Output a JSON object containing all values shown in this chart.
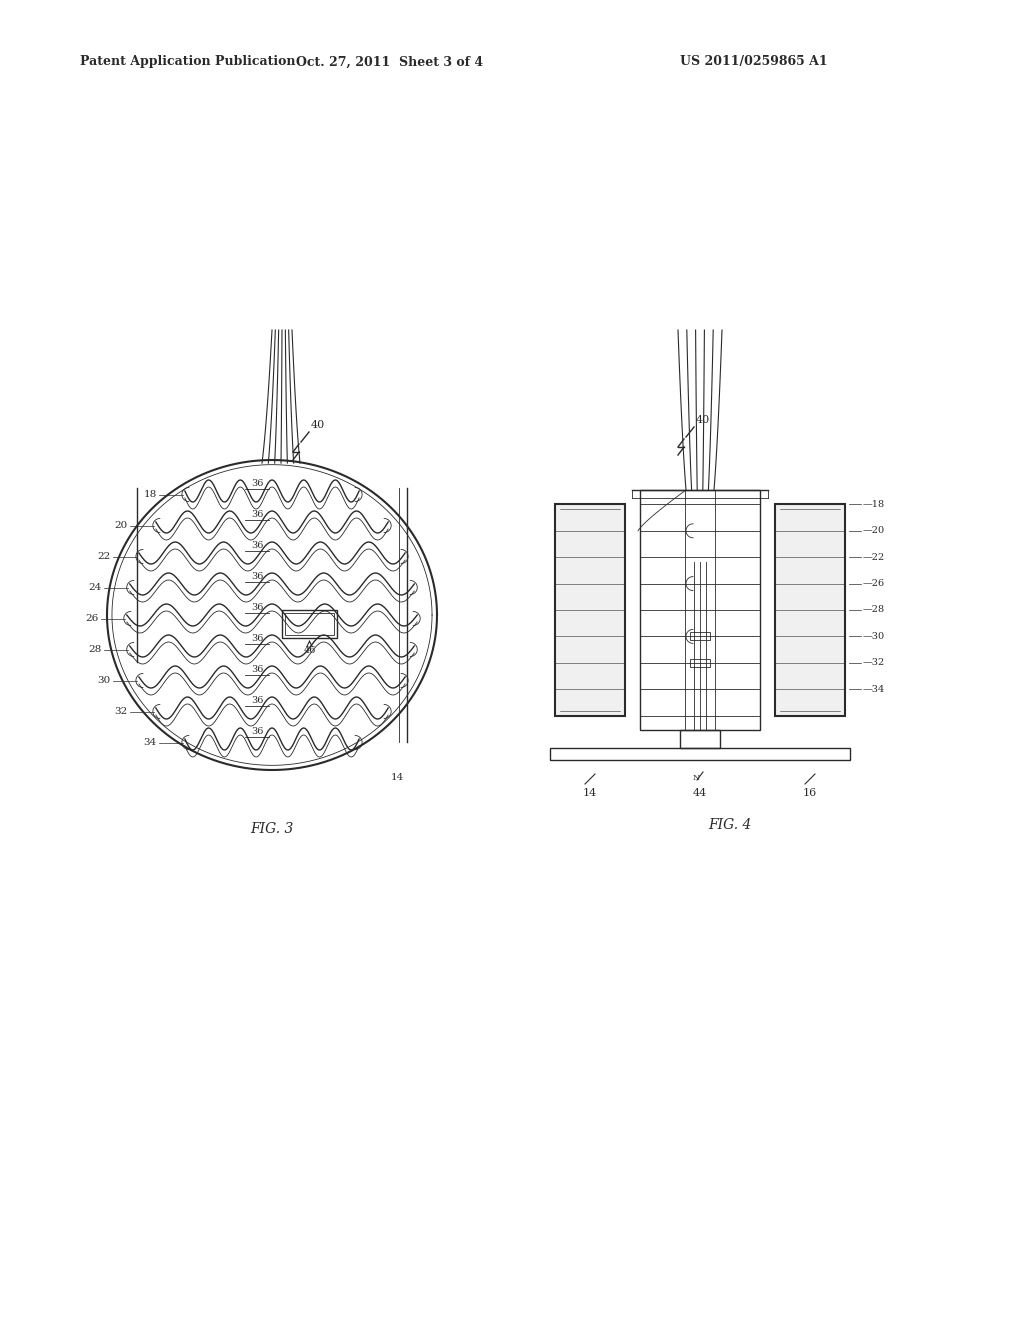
{
  "bg_color": "#ffffff",
  "line_color": "#2a2a2a",
  "header_text": "Patent Application Publication",
  "header_date": "Oct. 27, 2011  Sheet 3 of 4",
  "header_patent": "US 2011/0259865 A1",
  "fig3_label": "FIG. 3",
  "fig4_label": "FIG. 4",
  "label_40": "40",
  "label_46": "46",
  "label_14": "14",
  "label_44": "44",
  "label_16": "16",
  "labels_left": [
    "18",
    "20",
    "22",
    "24",
    "26",
    "28",
    "30",
    "32",
    "34"
  ],
  "labels_36": [
    "36",
    "36",
    "36",
    "36",
    "36",
    "36",
    "36",
    "36",
    "36"
  ],
  "labels_right4": [
    "18",
    "20",
    "22",
    "26",
    "28",
    "30",
    "32",
    "34"
  ]
}
